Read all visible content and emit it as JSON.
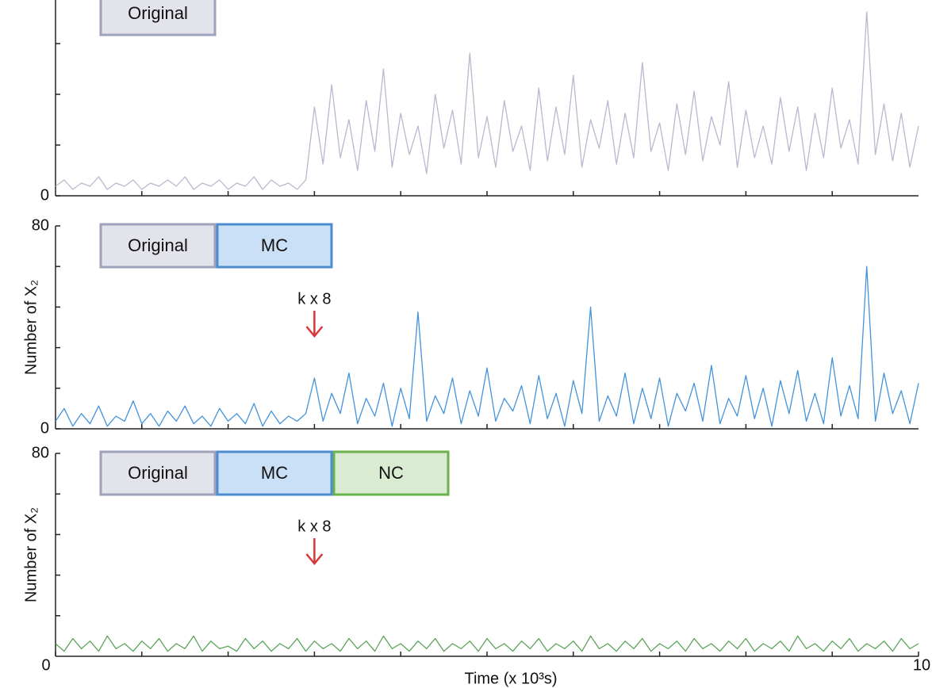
{
  "chart_data": [
    {
      "type": "line",
      "xlim": [
        0,
        10
      ],
      "minor_xticks": [
        1,
        2,
        3,
        4,
        5,
        6,
        7,
        8,
        9
      ],
      "ylim": [
        0,
        64
      ],
      "yticks": [
        0
      ],
      "minor_yticks": [
        16,
        32,
        48
      ],
      "legend": [
        {
          "label": "Original",
          "fill": "#e3e3eb",
          "border": "#9ea3bb"
        }
      ],
      "x": [
        0,
        0.1,
        0.2,
        0.3,
        0.4,
        0.5,
        0.6,
        0.7,
        0.8,
        0.9,
        1,
        1.1,
        1.2,
        1.3,
        1.4,
        1.5,
        1.6,
        1.7,
        1.8,
        1.9,
        2,
        2.1,
        2.2,
        2.3,
        2.4,
        2.5,
        2.6,
        2.7,
        2.8,
        2.9,
        3,
        3.1,
        3.2,
        3.3,
        3.4,
        3.5,
        3.6,
        3.7,
        3.8,
        3.9,
        4,
        4.1,
        4.2,
        4.3,
        4.4,
        4.5,
        4.6,
        4.7,
        4.8,
        4.9,
        5,
        5.1,
        5.2,
        5.3,
        5.4,
        5.5,
        5.6,
        5.7,
        5.8,
        5.9,
        6,
        6.1,
        6.2,
        6.3,
        6.4,
        6.5,
        6.6,
        6.7,
        6.8,
        6.9,
        7,
        7.1,
        7.2,
        7.3,
        7.4,
        7.5,
        7.6,
        7.7,
        7.8,
        7.9,
        8,
        8.1,
        8.2,
        8.3,
        8.4,
        8.5,
        8.6,
        8.7,
        8.8,
        8.9,
        9,
        9.1,
        9.2,
        9.3,
        9.4,
        9.5,
        9.6,
        9.7,
        9.8,
        9.9,
        10
      ],
      "series": [
        {
          "color": "#adb2ca",
          "values": [
            3,
            5,
            2,
            4,
            3,
            6,
            2,
            4,
            3,
            5,
            2,
            4,
            3,
            5,
            3,
            6,
            2,
            4,
            3,
            5,
            2,
            4,
            3,
            6,
            2,
            5,
            3,
            4,
            2,
            5,
            28,
            10,
            35,
            12,
            24,
            8,
            30,
            14,
            40,
            9,
            26,
            13,
            22,
            7,
            32,
            15,
            27,
            10,
            45,
            12,
            25,
            9,
            30,
            14,
            22,
            8,
            34,
            11,
            28,
            13,
            38,
            9,
            24,
            15,
            30,
            10,
            26,
            12,
            42,
            14,
            23,
            8,
            29,
            13,
            33,
            11,
            25,
            16,
            36,
            9,
            27,
            12,
            22,
            10,
            31,
            14,
            28,
            8,
            26,
            12,
            34,
            15,
            24,
            10,
            58,
            13,
            29,
            11,
            26,
            9,
            22
          ]
        }
      ]
    },
    {
      "type": "line",
      "xlim": [
        0,
        10
      ],
      "minor_xticks": [
        1,
        2,
        3,
        4,
        5,
        6,
        7,
        8,
        9
      ],
      "ylim": [
        0,
        80
      ],
      "yticks": [
        0,
        80
      ],
      "minor_yticks": [
        16,
        32,
        48,
        64
      ],
      "ylabel": "Number of X₂",
      "legend": [
        {
          "label": "Original",
          "fill": "#e3e3eb",
          "border": "#9ea3bb"
        },
        {
          "label": "MC",
          "fill": "#c9e0f6",
          "border": "#4c8ccf"
        }
      ],
      "annotation": {
        "text": "k x 8",
        "x": 3,
        "color": "#d9383a"
      },
      "x": [
        0,
        0.1,
        0.2,
        0.3,
        0.4,
        0.5,
        0.6,
        0.7,
        0.8,
        0.9,
        1,
        1.1,
        1.2,
        1.3,
        1.4,
        1.5,
        1.6,
        1.7,
        1.8,
        1.9,
        2,
        2.1,
        2.2,
        2.3,
        2.4,
        2.5,
        2.6,
        2.7,
        2.8,
        2.9,
        3,
        3.1,
        3.2,
        3.3,
        3.4,
        3.5,
        3.6,
        3.7,
        3.8,
        3.9,
        4,
        4.1,
        4.2,
        4.3,
        4.4,
        4.5,
        4.6,
        4.7,
        4.8,
        4.9,
        5,
        5.1,
        5.2,
        5.3,
        5.4,
        5.5,
        5.6,
        5.7,
        5.8,
        5.9,
        6,
        6.1,
        6.2,
        6.3,
        6.4,
        6.5,
        6.6,
        6.7,
        6.8,
        6.9,
        7,
        7.1,
        7.2,
        7.3,
        7.4,
        7.5,
        7.6,
        7.7,
        7.8,
        7.9,
        8,
        8.1,
        8.2,
        8.3,
        8.4,
        8.5,
        8.6,
        8.7,
        8.8,
        8.9,
        9,
        9.1,
        9.2,
        9.3,
        9.4,
        9.5,
        9.6,
        9.7,
        9.8,
        9.9,
        10
      ],
      "series": [
        {
          "color": "#2f87d8",
          "values": [
            3,
            8,
            1,
            6,
            2,
            9,
            1,
            5,
            3,
            11,
            2,
            6,
            1,
            7,
            3,
            9,
            2,
            5,
            1,
            8,
            3,
            6,
            2,
            10,
            1,
            7,
            2,
            5,
            3,
            6,
            20,
            3,
            14,
            6,
            22,
            2,
            12,
            5,
            18,
            1,
            16,
            4,
            46,
            3,
            13,
            6,
            20,
            2,
            15,
            5,
            24,
            3,
            12,
            7,
            17,
            2,
            21,
            4,
            14,
            1,
            19,
            6,
            48,
            3,
            13,
            5,
            22,
            2,
            16,
            4,
            20,
            1,
            14,
            7,
            18,
            3,
            25,
            2,
            12,
            5,
            21,
            4,
            16,
            1,
            19,
            6,
            23,
            3,
            14,
            2,
            28,
            5,
            17,
            4,
            64,
            3,
            22,
            6,
            15,
            2,
            18
          ]
        }
      ]
    },
    {
      "type": "line",
      "xlim": [
        0,
        10
      ],
      "xticks": [
        0,
        10
      ],
      "minor_xticks": [
        1,
        2,
        3,
        4,
        5,
        6,
        7,
        8,
        9
      ],
      "xlabel": "Time (x 10³s)",
      "ylim": [
        0,
        80
      ],
      "yticks": [
        80
      ],
      "minor_yticks": [
        16,
        32,
        48,
        64
      ],
      "ylabel": "Number of X₂",
      "legend": [
        {
          "label": "Original",
          "fill": "#e3e3eb",
          "border": "#9ea3bb"
        },
        {
          "label": "MC",
          "fill": "#c9e0f6",
          "border": "#4c8ccf"
        },
        {
          "label": "NC",
          "fill": "#d9ecd1",
          "border": "#6cb24c"
        }
      ],
      "annotation": {
        "text": "k x 8",
        "x": 3,
        "color": "#d9383a"
      },
      "x": [
        0,
        0.1,
        0.2,
        0.3,
        0.4,
        0.5,
        0.6,
        0.7,
        0.8,
        0.9,
        1,
        1.1,
        1.2,
        1.3,
        1.4,
        1.5,
        1.6,
        1.7,
        1.8,
        1.9,
        2,
        2.1,
        2.2,
        2.3,
        2.4,
        2.5,
        2.6,
        2.7,
        2.8,
        2.9,
        3,
        3.1,
        3.2,
        3.3,
        3.4,
        3.5,
        3.6,
        3.7,
        3.8,
        3.9,
        4,
        4.1,
        4.2,
        4.3,
        4.4,
        4.5,
        4.6,
        4.7,
        4.8,
        4.9,
        5,
        5.1,
        5.2,
        5.3,
        5.4,
        5.5,
        5.6,
        5.7,
        5.8,
        5.9,
        6,
        6.1,
        6.2,
        6.3,
        6.4,
        6.5,
        6.6,
        6.7,
        6.8,
        6.9,
        7,
        7.1,
        7.2,
        7.3,
        7.4,
        7.5,
        7.6,
        7.7,
        7.8,
        7.9,
        8,
        8.1,
        8.2,
        8.3,
        8.4,
        8.5,
        8.6,
        8.7,
        8.8,
        8.9,
        9,
        9.1,
        9.2,
        9.3,
        9.4,
        9.5,
        9.6,
        9.7,
        9.8,
        9.9,
        10
      ],
      "series": [
        {
          "color": "#4b9a49",
          "values": [
            5,
            2,
            7,
            3,
            6,
            2,
            8,
            3,
            5,
            2,
            6,
            3,
            7,
            2,
            5,
            3,
            8,
            2,
            6,
            3,
            4,
            2,
            7,
            3,
            6,
            2,
            5,
            3,
            7,
            2,
            6,
            3,
            5,
            2,
            7,
            3,
            6,
            2,
            8,
            3,
            5,
            2,
            6,
            3,
            7,
            2,
            5,
            3,
            6,
            2,
            7,
            3,
            5,
            2,
            6,
            3,
            7,
            2,
            5,
            3,
            6,
            2,
            8,
            3,
            5,
            2,
            6,
            3,
            7,
            2,
            5,
            3,
            6,
            2,
            7,
            3,
            5,
            2,
            6,
            3,
            7,
            2,
            5,
            3,
            6,
            2,
            8,
            3,
            5,
            2,
            6,
            3,
            7,
            2,
            5,
            3,
            6,
            2,
            7,
            3,
            5
          ]
        }
      ]
    }
  ]
}
